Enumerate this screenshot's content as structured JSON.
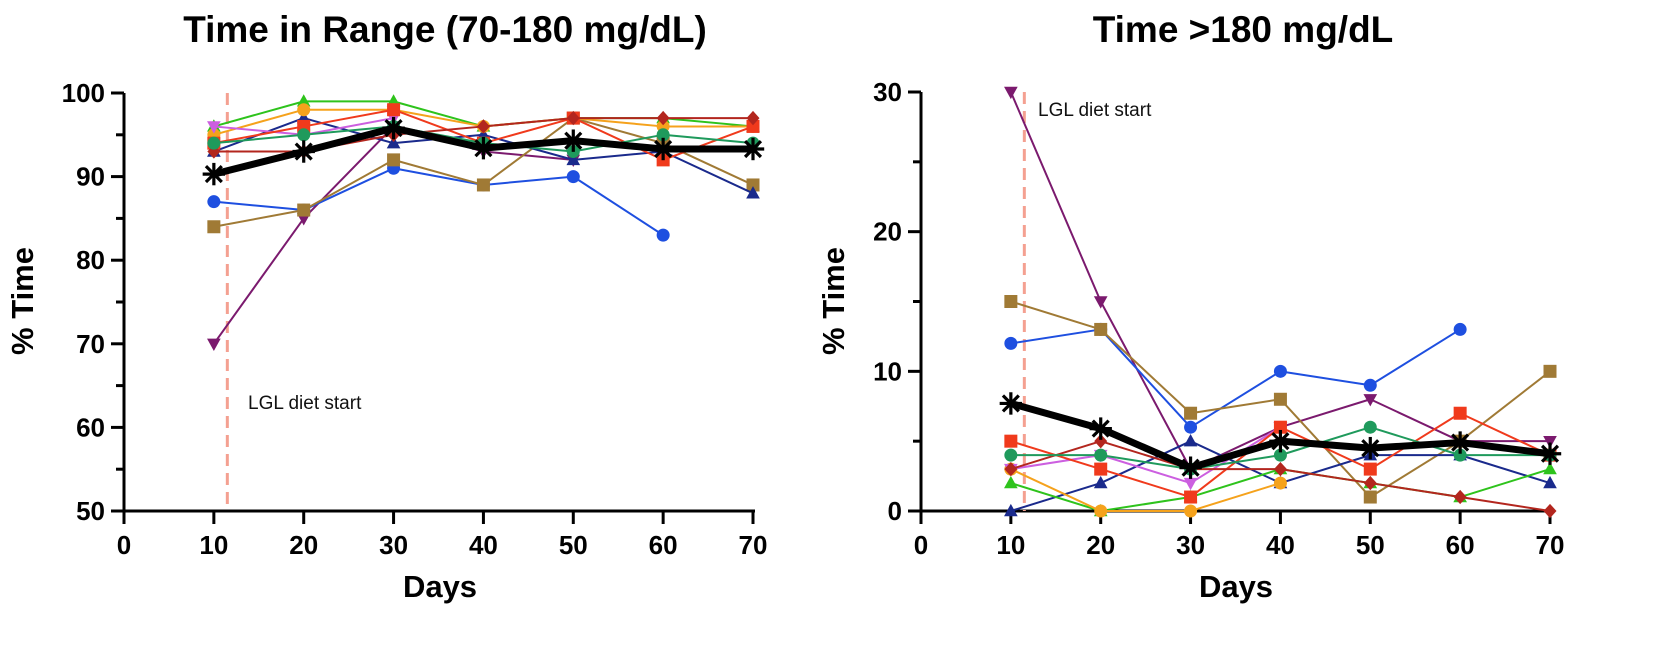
{
  "chart_data": [
    {
      "type": "line",
      "title": "Time in Range (70-180 mg/dL)",
      "xlabel": "Days",
      "ylabel": "% Time",
      "xlim": [
        0,
        70
      ],
      "ylim": [
        50,
        100
      ],
      "xticks": [
        "0",
        "10",
        "20",
        "30",
        "40",
        "50",
        "60",
        "70"
      ],
      "yticks": [
        "50",
        "60",
        "70",
        "80",
        "90",
        "100"
      ],
      "annotation": {
        "text": "LGL diet start",
        "day": 11.5
      },
      "series": [
        {
          "name": "mean",
          "color": "#000000",
          "marker": "asterisk",
          "mean": true,
          "x": [
            10,
            20,
            30,
            40,
            50,
            60,
            70
          ],
          "y": [
            90.3,
            93,
            95.8,
            93.4,
            94.3,
            93.3,
            93.3
          ]
        },
        {
          "name": "subject-purple",
          "color": "#7b1a6e",
          "marker": "triangle-down",
          "x": [
            10,
            20,
            30,
            40,
            50
          ],
          "y": [
            70,
            85,
            96,
            93,
            92
          ]
        },
        {
          "name": "subject-blue",
          "color": "#1e4fe0",
          "marker": "circle",
          "x": [
            10,
            20,
            30,
            40,
            50,
            60
          ],
          "y": [
            87,
            86,
            91,
            89,
            90,
            83
          ]
        },
        {
          "name": "subject-tan",
          "color": "#a07a35",
          "marker": "square",
          "x": [
            10,
            20,
            30,
            40,
            50,
            60,
            70
          ],
          "y": [
            84,
            86,
            92,
            89,
            97,
            94,
            89
          ]
        },
        {
          "name": "subject-navy",
          "color": "#1a2a8c",
          "marker": "triangle-up",
          "x": [
            10,
            20,
            30,
            40,
            50,
            60,
            70
          ],
          "y": [
            93,
            97,
            94,
            95,
            92,
            93,
            88
          ]
        },
        {
          "name": "subject-green",
          "color": "#2ec31c",
          "marker": "triangle-up",
          "x": [
            10,
            20,
            30,
            40,
            50,
            60,
            70
          ],
          "y": [
            96,
            99,
            99,
            96,
            97,
            97,
            96
          ]
        },
        {
          "name": "subject-orange",
          "color": "#f5a21c",
          "marker": "circle",
          "x": [
            10,
            20,
            30,
            40,
            50,
            60,
            70
          ],
          "y": [
            95,
            98,
            98,
            96,
            97,
            96,
            96
          ]
        },
        {
          "name": "subject-magenta",
          "color": "#cc5fe0",
          "marker": "triangle-down",
          "x": [
            10,
            20,
            30
          ],
          "y": [
            96,
            95,
            97
          ]
        },
        {
          "name": "subject-red",
          "color": "#f03a1c",
          "marker": "square",
          "x": [
            10,
            20,
            30,
            40,
            50,
            60,
            70
          ],
          "y": [
            94,
            96,
            98,
            94,
            97,
            92,
            96
          ]
        },
        {
          "name": "subject-darkred",
          "color": "#b3261e",
          "marker": "diamond",
          "x": [
            10,
            20,
            30,
            40,
            50,
            60,
            70
          ],
          "y": [
            93,
            93,
            95,
            96,
            97,
            97,
            97
          ]
        },
        {
          "name": "subject-teal",
          "color": "#1f9a5c",
          "marker": "circle",
          "x": [
            10,
            20,
            30,
            40,
            50,
            60,
            70
          ],
          "y": [
            94,
            95,
            96,
            94,
            93,
            95,
            94
          ]
        }
      ]
    },
    {
      "type": "line",
      "title": "Time >180 mg/dL",
      "xlabel": "Days",
      "ylabel": "% Time",
      "xlim": [
        0,
        70
      ],
      "ylim": [
        0,
        30
      ],
      "xticks": [
        "0",
        "10",
        "20",
        "30",
        "40",
        "50",
        "60",
        "70"
      ],
      "yticks": [
        "0",
        "10",
        "20",
        "30"
      ],
      "annotation": {
        "text": "LGL diet start",
        "day": 11.5
      },
      "series": [
        {
          "name": "mean",
          "color": "#000000",
          "marker": "asterisk",
          "mean": true,
          "x": [
            10,
            20,
            30,
            40,
            50,
            60,
            70
          ],
          "y": [
            7.7,
            5.9,
            3.1,
            5,
            4.5,
            4.9,
            4.1
          ]
        },
        {
          "name": "subject-purple",
          "color": "#7b1a6e",
          "marker": "triangle-down",
          "x": [
            10,
            20,
            30,
            40,
            50,
            60,
            70
          ],
          "y": [
            30,
            15,
            3,
            6,
            8,
            5,
            5
          ]
        },
        {
          "name": "subject-blue",
          "color": "#1e4fe0",
          "marker": "circle",
          "x": [
            10,
            20,
            30,
            40,
            50,
            60
          ],
          "y": [
            12,
            13,
            6,
            10,
            9,
            13
          ]
        },
        {
          "name": "subject-tan",
          "color": "#a07a35",
          "marker": "square",
          "x": [
            10,
            20,
            30,
            40,
            50,
            60,
            70
          ],
          "y": [
            15,
            13,
            7,
            8,
            1,
            5,
            10
          ]
        },
        {
          "name": "subject-navy",
          "color": "#1a2a8c",
          "marker": "triangle-up",
          "x": [
            10,
            20,
            30,
            40,
            50,
            60,
            70
          ],
          "y": [
            0,
            2,
            5,
            2,
            4,
            4,
            2
          ]
        },
        {
          "name": "subject-green",
          "color": "#2ec31c",
          "marker": "triangle-up",
          "x": [
            10,
            20,
            30,
            40,
            50,
            60,
            70
          ],
          "y": [
            2,
            0,
            1,
            3,
            2,
            1,
            3
          ]
        },
        {
          "name": "subject-orange",
          "color": "#f5a21c",
          "marker": "circle",
          "x": [
            10,
            20,
            30,
            40
          ],
          "y": [
            3,
            0,
            0,
            2
          ]
        },
        {
          "name": "subject-magenta",
          "color": "#cc5fe0",
          "marker": "triangle-down",
          "x": [
            10,
            20,
            30,
            40
          ],
          "y": [
            3,
            4,
            2,
            6
          ]
        },
        {
          "name": "subject-red",
          "color": "#f03a1c",
          "marker": "square",
          "x": [
            10,
            20,
            30,
            40,
            50,
            60,
            70
          ],
          "y": [
            5,
            3,
            1,
            6,
            3,
            7,
            4
          ]
        },
        {
          "name": "subject-darkred",
          "color": "#b3261e",
          "marker": "diamond",
          "x": [
            10,
            20,
            30,
            40,
            50,
            60,
            70
          ],
          "y": [
            3,
            5,
            3,
            3,
            2,
            1,
            0
          ]
        },
        {
          "name": "subject-teal",
          "color": "#1f9a5c",
          "marker": "circle",
          "x": [
            10,
            20,
            30,
            40,
            50,
            60,
            70
          ],
          "y": [
            4,
            4,
            3,
            4,
            6,
            4,
            4
          ]
        }
      ]
    }
  ]
}
